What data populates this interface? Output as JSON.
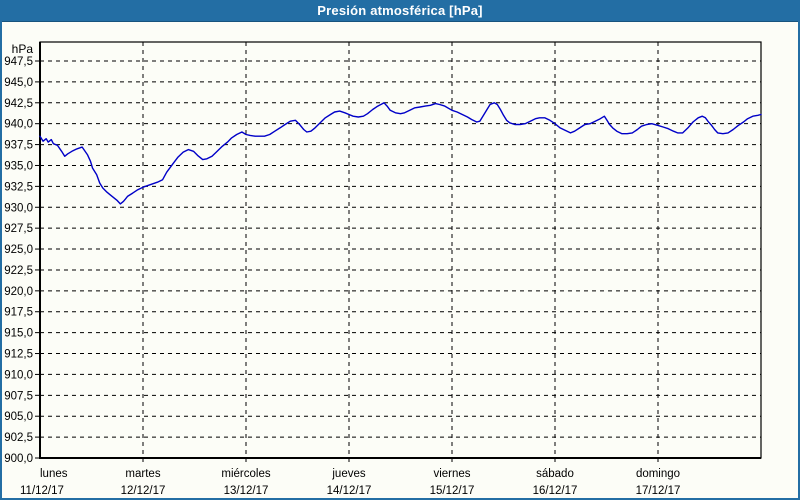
{
  "window": {
    "title": "Presión atmosférica [hPa]"
  },
  "colors": {
    "titlebar_bg": "#236ea4",
    "titlebar_text": "#ffffff",
    "frame_border": "#236ea4",
    "background": "#fcfdf7",
    "series_line": "#0000c8",
    "grid": "#000000",
    "text": "#000000"
  },
  "chart_data": {
    "type": "line",
    "title": "Presión atmosférica [hPa]",
    "unit_label": "hPa",
    "grid": "dashed",
    "legend": "none",
    "y_axis": {
      "min": 900,
      "max": 950,
      "tick_step": 2.5,
      "first_tick": 900.0,
      "last_tick": 947.5,
      "decimal_separator": ","
    },
    "x_axis": {
      "days": [
        {
          "name": "lunes",
          "date": "11/12/17"
        },
        {
          "name": "martes",
          "date": "12/12/17"
        },
        {
          "name": "miércoles",
          "date": "13/12/17"
        },
        {
          "name": "jueves",
          "date": "14/12/17"
        },
        {
          "name": "viernes",
          "date": "15/12/17"
        },
        {
          "name": "sábado",
          "date": "16/12/17"
        },
        {
          "name": "domingo",
          "date": "17/12/17"
        }
      ],
      "span_days": 7
    },
    "series": [
      {
        "name": "Presión atmosférica",
        "color": "#0000c8",
        "points": [
          [
            0.0,
            938.5
          ],
          [
            0.03,
            937.9
          ],
          [
            0.06,
            938.2
          ],
          [
            0.08,
            937.8
          ],
          [
            0.11,
            938.1
          ],
          [
            0.13,
            937.6
          ],
          [
            0.17,
            937.4
          ],
          [
            0.21,
            936.7
          ],
          [
            0.24,
            936.1
          ],
          [
            0.27,
            936.4
          ],
          [
            0.31,
            936.7
          ],
          [
            0.36,
            937.0
          ],
          [
            0.41,
            937.2
          ],
          [
            0.46,
            936.3
          ],
          [
            0.49,
            935.5
          ],
          [
            0.51,
            934.7
          ],
          [
            0.55,
            933.9
          ],
          [
            0.58,
            932.9
          ],
          [
            0.61,
            932.3
          ],
          [
            0.65,
            931.8
          ],
          [
            0.68,
            931.5
          ],
          [
            0.71,
            931.2
          ],
          [
            0.75,
            930.8
          ],
          [
            0.78,
            930.4
          ],
          [
            0.81,
            930.7
          ],
          [
            0.83,
            931.0
          ],
          [
            0.85,
            931.3
          ],
          [
            0.9,
            931.7
          ],
          [
            0.95,
            932.1
          ],
          [
            1.0,
            932.4
          ],
          [
            1.07,
            932.7
          ],
          [
            1.14,
            933.0
          ],
          [
            1.19,
            933.3
          ],
          [
            1.23,
            934.2
          ],
          [
            1.29,
            935.2
          ],
          [
            1.34,
            936.0
          ],
          [
            1.39,
            936.6
          ],
          [
            1.44,
            936.9
          ],
          [
            1.49,
            936.7
          ],
          [
            1.53,
            936.2
          ],
          [
            1.58,
            935.7
          ],
          [
            1.62,
            935.8
          ],
          [
            1.67,
            936.1
          ],
          [
            1.72,
            936.7
          ],
          [
            1.77,
            937.3
          ],
          [
            1.82,
            937.8
          ],
          [
            1.86,
            938.3
          ],
          [
            1.91,
            938.7
          ],
          [
            1.96,
            939.0
          ],
          [
            2.0,
            938.7
          ],
          [
            2.04,
            938.6
          ],
          [
            2.09,
            938.5
          ],
          [
            2.18,
            938.5
          ],
          [
            2.23,
            938.7
          ],
          [
            2.28,
            939.1
          ],
          [
            2.33,
            939.5
          ],
          [
            2.38,
            939.9
          ],
          [
            2.43,
            940.3
          ],
          [
            2.48,
            940.4
          ],
          [
            2.52,
            939.9
          ],
          [
            2.56,
            939.3
          ],
          [
            2.59,
            939.0
          ],
          [
            2.63,
            939.1
          ],
          [
            2.67,
            939.5
          ],
          [
            2.72,
            940.1
          ],
          [
            2.77,
            940.7
          ],
          [
            2.82,
            941.1
          ],
          [
            2.86,
            941.4
          ],
          [
            2.91,
            941.5
          ],
          [
            2.96,
            941.3
          ],
          [
            3.0,
            941.1
          ],
          [
            3.04,
            940.9
          ],
          [
            3.09,
            940.8
          ],
          [
            3.14,
            940.9
          ],
          [
            3.18,
            941.2
          ],
          [
            3.23,
            941.7
          ],
          [
            3.28,
            942.1
          ],
          [
            3.34,
            942.5
          ],
          [
            3.37,
            942.1
          ],
          [
            3.4,
            941.6
          ],
          [
            3.45,
            941.3
          ],
          [
            3.5,
            941.2
          ],
          [
            3.54,
            941.3
          ],
          [
            3.59,
            941.6
          ],
          [
            3.64,
            941.9
          ],
          [
            3.69,
            942.0
          ],
          [
            3.74,
            942.1
          ],
          [
            3.79,
            942.2
          ],
          [
            3.84,
            942.4
          ],
          [
            3.88,
            942.3
          ],
          [
            3.93,
            942.1
          ],
          [
            4.0,
            941.6
          ],
          [
            4.05,
            941.4
          ],
          [
            4.1,
            941.1
          ],
          [
            4.15,
            940.8
          ],
          [
            4.19,
            940.5
          ],
          [
            4.24,
            940.2
          ],
          [
            4.27,
            940.3
          ],
          [
            4.3,
            940.9
          ],
          [
            4.34,
            941.7
          ],
          [
            4.37,
            942.3
          ],
          [
            4.41,
            942.5
          ],
          [
            4.44,
            942.3
          ],
          [
            4.47,
            941.7
          ],
          [
            4.5,
            941.0
          ],
          [
            4.53,
            940.4
          ],
          [
            4.56,
            940.1
          ],
          [
            4.61,
            939.9
          ],
          [
            4.66,
            939.9
          ],
          [
            4.71,
            940.0
          ],
          [
            4.76,
            940.3
          ],
          [
            4.81,
            940.6
          ],
          [
            4.85,
            940.7
          ],
          [
            4.9,
            940.7
          ],
          [
            4.95,
            940.4
          ],
          [
            5.0,
            940.0
          ],
          [
            5.05,
            939.5
          ],
          [
            5.1,
            939.2
          ],
          [
            5.15,
            938.9
          ],
          [
            5.19,
            939.1
          ],
          [
            5.24,
            939.5
          ],
          [
            5.29,
            939.9
          ],
          [
            5.34,
            940.0
          ],
          [
            5.39,
            940.3
          ],
          [
            5.44,
            940.6
          ],
          [
            5.48,
            940.9
          ],
          [
            5.5,
            940.5
          ],
          [
            5.53,
            939.9
          ],
          [
            5.56,
            939.5
          ],
          [
            5.6,
            939.1
          ],
          [
            5.65,
            938.8
          ],
          [
            5.7,
            938.8
          ],
          [
            5.75,
            938.9
          ],
          [
            5.8,
            939.3
          ],
          [
            5.84,
            939.7
          ],
          [
            5.89,
            939.9
          ],
          [
            5.94,
            940.0
          ],
          [
            6.0,
            939.8
          ],
          [
            6.05,
            939.6
          ],
          [
            6.1,
            939.4
          ],
          [
            6.15,
            939.1
          ],
          [
            6.19,
            938.9
          ],
          [
            6.24,
            938.9
          ],
          [
            6.29,
            939.5
          ],
          [
            6.34,
            940.2
          ],
          [
            6.39,
            940.7
          ],
          [
            6.43,
            940.9
          ],
          [
            6.46,
            940.7
          ],
          [
            6.49,
            940.2
          ],
          [
            6.52,
            939.8
          ],
          [
            6.55,
            939.3
          ],
          [
            6.58,
            938.9
          ],
          [
            6.63,
            938.8
          ],
          [
            6.68,
            938.9
          ],
          [
            6.73,
            939.3
          ],
          [
            6.78,
            939.8
          ],
          [
            6.83,
            940.2
          ],
          [
            6.87,
            940.6
          ],
          [
            6.92,
            940.9
          ],
          [
            6.97,
            941.0
          ],
          [
            7.0,
            941.1
          ]
        ]
      }
    ]
  }
}
